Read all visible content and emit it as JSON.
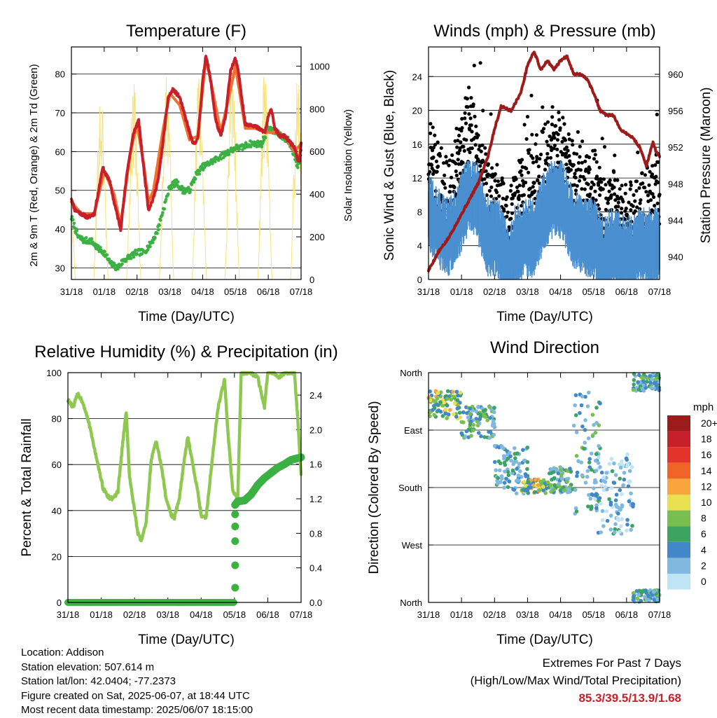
{
  "colors": {
    "temp_2m": "#c8202a",
    "temp_9m": "#f07030",
    "dewpoint": "#3cb043",
    "solar": "#f7e37a",
    "wind": "#4a90d0",
    "gust": "#000000",
    "pressure": "#9e1b1b",
    "rh": "#8fc850",
    "precip": "#3cb043"
  },
  "footer": {
    "location": "Location: Addison",
    "elevation": "Station elevation: 507.614 m",
    "latlon": "Station lat/lon: 42.0404; -77.2373",
    "created": "Figure created on Sat, 2025-06-07, at 18:44 UTC",
    "recent": "Most recent data timestamp: 2025/06/07 18:15:00",
    "extremes_title": "Extremes For Past 7 Days",
    "extremes_sub": "(High/Low/Max Wind/Total Precipitation)",
    "extremes_values": "85.3/39.5/13.9/1.68"
  },
  "chart_data": [
    {
      "type": "line",
      "title": "Temperature (F)",
      "xlabel": "Time (Day/UTC)",
      "ylabel": "2m & 9m T (Red, Orange) & 2m Td (Green)",
      "y2label": "Solar Insolation (Yellow)",
      "x_ticks": [
        "31/18",
        "01/18",
        "02/18",
        "03/18",
        "04/18",
        "05/18",
        "06/18",
        "07/18"
      ],
      "ylim": [
        27,
        87
      ],
      "y_ticks": [
        30,
        40,
        50,
        60,
        70,
        80
      ],
      "y2lim": [
        0,
        1090
      ],
      "y2_ticks": [
        0,
        200,
        400,
        600,
        800,
        1000
      ],
      "grid": true,
      "series": [
        {
          "name": "2m T",
          "axis": "left",
          "color": "#c8202a",
          "x": [
            0,
            0.1,
            0.3,
            0.5,
            0.7,
            0.85,
            0.95,
            1.05,
            1.15,
            1.3,
            1.5,
            1.7,
            1.9,
            2.05,
            2.2,
            2.35,
            2.5,
            2.65,
            2.8,
            2.95,
            3.1,
            3.3,
            3.5,
            3.7,
            3.85,
            4.0,
            4.1,
            4.25,
            4.4,
            4.55,
            4.7,
            4.85,
            5.0,
            5.1,
            5.3,
            5.5,
            5.7,
            5.9,
            6.0,
            6.1,
            6.2,
            6.35,
            6.5,
            6.7,
            6.8,
            6.9,
            6.95,
            7.0
          ],
          "values": [
            48,
            45,
            44,
            43,
            44,
            51,
            56,
            54,
            53,
            47,
            40,
            55,
            65,
            68,
            56,
            45,
            48,
            53,
            63,
            74,
            76,
            74,
            68,
            62,
            63,
            78,
            85,
            78,
            68,
            64,
            69,
            81,
            84,
            80,
            67,
            67,
            66,
            65,
            69,
            71,
            66,
            64,
            64,
            62,
            61,
            58,
            57,
            62
          ]
        },
        {
          "name": "9m T",
          "axis": "left",
          "color": "#f07030",
          "x": [
            0,
            0.3,
            0.7,
            1.0,
            1.3,
            1.5,
            1.8,
            2.0,
            2.2,
            2.35,
            2.5,
            2.8,
            3.0,
            3.3,
            3.6,
            3.85,
            4.1,
            4.3,
            4.55,
            4.8,
            5.0,
            5.3,
            5.6,
            5.9,
            6.2,
            6.5,
            6.8,
            7.0
          ],
          "values": [
            47,
            44,
            44,
            55,
            49,
            41,
            60,
            67,
            57,
            47,
            50,
            66,
            75,
            72,
            63,
            64,
            84,
            76,
            65,
            74,
            82,
            66,
            66,
            65,
            65,
            64,
            60,
            62
          ]
        },
        {
          "name": "2m Td",
          "axis": "left",
          "color": "#3cb043",
          "x": [
            0,
            0.2,
            0.4,
            0.6,
            0.8,
            1.0,
            1.2,
            1.4,
            1.6,
            1.8,
            2.0,
            2.2,
            2.4,
            2.6,
            2.8,
            3.0,
            3.2,
            3.4,
            3.6,
            3.8,
            4.0,
            4.2,
            4.4,
            4.6,
            4.8,
            5.0,
            5.2,
            5.4,
            5.6,
            5.8,
            6.0,
            6.2,
            6.4,
            6.6,
            6.7,
            6.8,
            6.9,
            7.0
          ],
          "values": [
            43,
            38,
            37,
            37,
            35,
            34,
            31,
            30,
            32,
            33,
            34,
            34,
            36,
            39,
            45,
            51,
            52,
            50,
            50,
            54,
            56,
            57,
            58,
            59,
            60,
            61,
            61,
            62,
            62,
            62,
            66,
            65,
            64,
            63,
            61,
            59,
            56,
            60
          ]
        },
        {
          "name": "Solar",
          "axis": "right",
          "color": "#f7e37a",
          "type": "daily-peaks",
          "peaks_x": [
            -0.1,
            0.9,
            1.9,
            2.9,
            3.9,
            4.9,
            5.9,
            6.9
          ],
          "peaks_value": [
            860,
            900,
            940,
            960,
            1000,
            1010,
            1020,
            980
          ],
          "half_width": 0.22
        }
      ]
    },
    {
      "type": "scatter",
      "title": "Winds (mph) & Pressure (mb)",
      "xlabel": "Time (Day/UTC)",
      "ylabel": "Sonic Wind & Gust (Blue, Black)",
      "y2label": "Station Pressure (Maroon)",
      "x_ticks": [
        "31/18",
        "01/18",
        "02/18",
        "03/18",
        "04/18",
        "05/18",
        "06/18",
        "07/18"
      ],
      "ylim": [
        0,
        27.5
      ],
      "y_ticks": [
        0,
        4,
        8,
        12,
        16,
        20,
        24
      ],
      "y2lim": [
        937.5,
        963
      ],
      "y2_ticks": [
        940,
        944,
        948,
        952,
        956,
        960
      ],
      "grid": true,
      "series": [
        {
          "name": "Sonic Wind",
          "color": "#4a90d0",
          "type": "band",
          "x": [
            0,
            0.3,
            0.6,
            0.9,
            1.2,
            1.5,
            1.8,
            2.1,
            2.4,
            2.6,
            2.9,
            3.2,
            3.5,
            3.8,
            4.1,
            4.4,
            4.7,
            5.0,
            5.3,
            5.6,
            5.9,
            6.2,
            6.5,
            6.8,
            7.0
          ],
          "values": [
            8,
            6,
            5,
            7,
            10,
            9,
            5,
            5,
            2,
            4,
            5,
            5,
            8,
            10,
            9,
            6,
            5,
            5,
            3,
            4,
            3,
            3,
            4,
            4,
            4
          ],
          "spread": 4
        },
        {
          "name": "Gust",
          "color": "#000000",
          "type": "dots",
          "x": [
            0,
            0.3,
            0.6,
            0.9,
            1.2,
            1.5,
            1.8,
            2.1,
            2.4,
            2.6,
            2.9,
            3.2,
            3.5,
            3.8,
            4.1,
            4.4,
            4.7,
            5.0,
            5.3,
            5.6,
            5.9,
            6.2,
            6.5,
            6.8,
            7.0
          ],
          "values": [
            15,
            11,
            9,
            13,
            18,
            14,
            10,
            9,
            5,
            8,
            10,
            11,
            13,
            16,
            14,
            11,
            9,
            11,
            7,
            8,
            6,
            7,
            8,
            9,
            11
          ],
          "spread": 5
        },
        {
          "name": "Station Pressure",
          "axis": "right",
          "color": "#9e1b1b",
          "x": [
            0,
            0.3,
            0.6,
            0.9,
            1.2,
            1.5,
            1.8,
            2.0,
            2.2,
            2.5,
            2.8,
            3.0,
            3.2,
            3.4,
            3.6,
            3.8,
            4.0,
            4.2,
            4.4,
            4.6,
            4.8,
            5.0,
            5.2,
            5.4,
            5.6,
            5.8,
            6.0,
            6.2,
            6.4,
            6.6,
            6.8,
            6.9,
            7.0
          ],
          "values": [
            938.5,
            940.5,
            942,
            944,
            946,
            948,
            951,
            954,
            956.5,
            956,
            958,
            961,
            962.5,
            960.5,
            961.5,
            960.5,
            961.5,
            962,
            960,
            960,
            959.5,
            958,
            956,
            955.5,
            955.5,
            954,
            953.5,
            953,
            952,
            950,
            952.5,
            951.5,
            951
          ]
        }
      ]
    },
    {
      "type": "line",
      "title": "Relative Humidity (%) & Precipitation (in)",
      "xlabel": "Time (Day/UTC)",
      "ylabel": "Percent & Total Rainfall",
      "x_ticks": [
        "31/18",
        "01/18",
        "02/18",
        "03/18",
        "04/18",
        "05/18",
        "06/18",
        "07/18"
      ],
      "ylim": [
        0,
        100
      ],
      "y_ticks": [
        0,
        20,
        40,
        60,
        80,
        100
      ],
      "y2lim": [
        0,
        2.66
      ],
      "y2_ticks": [
        0.0,
        0.4,
        0.8,
        1.2,
        1.6,
        2.0,
        2.4
      ],
      "grid": true,
      "series": [
        {
          "name": "Relative Humidity",
          "axis": "left",
          "color": "#8fc850",
          "x": [
            0,
            0.15,
            0.3,
            0.45,
            0.6,
            0.75,
            0.9,
            1.05,
            1.2,
            1.35,
            1.5,
            1.65,
            1.75,
            1.85,
            2.0,
            2.1,
            2.2,
            2.35,
            2.5,
            2.65,
            2.8,
            2.95,
            3.1,
            3.2,
            3.35,
            3.5,
            3.6,
            3.75,
            3.9,
            4.0,
            4.15,
            4.3,
            4.5,
            4.7,
            4.8,
            4.95,
            5.1,
            5.2,
            5.35,
            5.5,
            5.7,
            5.9,
            6.0,
            6.2,
            6.35,
            6.5,
            6.65,
            6.8,
            6.9,
            7.0
          ],
          "values": [
            88,
            85,
            91,
            87,
            80,
            70,
            60,
            50,
            46,
            45,
            48,
            70,
            83,
            55,
            40,
            30,
            27,
            35,
            62,
            70,
            60,
            45,
            38,
            37,
            46,
            63,
            72,
            60,
            48,
            38,
            37,
            58,
            84,
            97,
            75,
            48,
            45,
            100,
            100,
            100,
            98,
            85,
            100,
            100,
            98,
            100,
            100,
            100,
            80,
            55
          ]
        },
        {
          "name": "Total Precipitation",
          "axis": "right",
          "color": "#3cb043",
          "x": [
            0,
            1,
            2,
            3,
            4,
            4.9,
            5.02,
            5.02,
            5.02,
            5.02,
            5.02,
            5.02,
            5.1,
            5.3,
            5.5,
            5.7,
            5.9,
            6.1,
            6.3,
            6.5,
            6.7,
            7.0
          ],
          "values": [
            0,
            0,
            0,
            0,
            0,
            0,
            0.17,
            0.43,
            0.71,
            0.88,
            1.02,
            1.13,
            1.17,
            1.18,
            1.25,
            1.36,
            1.44,
            1.5,
            1.56,
            1.6,
            1.65,
            1.68
          ]
        }
      ]
    },
    {
      "type": "scatter",
      "title": "Wind Direction",
      "xlabel": "Time (Day/UTC)",
      "ylabel": "Direction (Colored By Speed)",
      "x_ticks": [
        "31/18",
        "01/18",
        "02/18",
        "03/18",
        "04/18",
        "05/18",
        "06/18",
        "07/18"
      ],
      "y_ticks": [
        "North",
        "West",
        "South",
        "East",
        "North"
      ],
      "ylim": [
        0,
        360
      ],
      "grid": true,
      "legend": {
        "title": "mph",
        "labels": [
          "20+",
          "18",
          "16",
          "14",
          "12",
          "10",
          "8",
          "6",
          "4",
          "2",
          "0"
        ],
        "colors": [
          "#9c1b1b",
          "#c8202a",
          "#e2342a",
          "#f06428",
          "#f9a43c",
          "#e8e050",
          "#78bf50",
          "#3ca460",
          "#4288c8",
          "#80b8e0",
          "#bfe4f6"
        ],
        "placement": "right"
      },
      "clusters": [
        {
          "x": [
            0,
            1.0
          ],
          "dir": [
            285,
            335
          ],
          "speed": [
            3,
            12
          ]
        },
        {
          "x": [
            1.0,
            2.0
          ],
          "dir": [
            255,
            310
          ],
          "speed": [
            2,
            9
          ]
        },
        {
          "x": [
            2.0,
            3.0
          ],
          "dir": [
            165,
            250
          ],
          "speed": [
            1,
            6
          ]
        },
        {
          "x": [
            2.8,
            3.6
          ],
          "dir": [
            170,
            195
          ],
          "speed": [
            3,
            13
          ]
        },
        {
          "x": [
            3.6,
            4.4
          ],
          "dir": [
            170,
            215
          ],
          "speed": [
            2,
            9
          ]
        },
        {
          "x": [
            4.4,
            5.2
          ],
          "dir": [
            120,
            345
          ],
          "speed": [
            1,
            8
          ]
        },
        {
          "x": [
            5.0,
            6.2
          ],
          "dir": [
            100,
            240
          ],
          "speed": [
            0,
            6
          ]
        },
        {
          "x": [
            6.2,
            7.0
          ],
          "dir": [
            330,
            360
          ],
          "speed": [
            2,
            9
          ]
        },
        {
          "x": [
            6.2,
            7.0
          ],
          "dir": [
            0,
            20
          ],
          "speed": [
            2,
            9
          ]
        }
      ]
    }
  ]
}
